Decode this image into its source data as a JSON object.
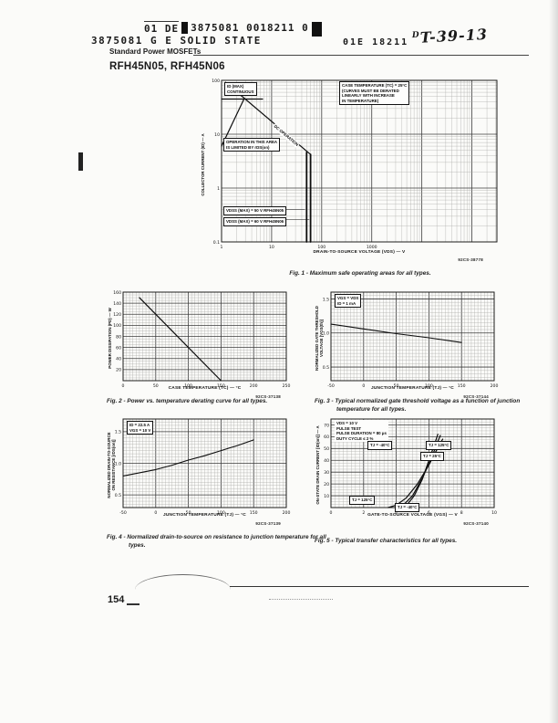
{
  "header": {
    "stamp_left": "01  DE",
    "stamp_right": "3875081 0018211 0",
    "vendor": "3875081 G E SOLID STATE",
    "doc_code": "01E 18211",
    "handwritten_prefix": "D",
    "handwritten": "T-39-13",
    "subtitle": "Standard Power MOSFETs",
    "part_numbers": "RFH45N05, RFH45N06"
  },
  "figures": [
    {
      "caption": "Fig. 1 - Maximum safe operating areas for all types."
    },
    {
      "caption": "Fig. 2 - Power vs. temperature derating curve for all types."
    },
    {
      "caption": "Fig. 3 - Typical normalized gate threshold voltage as a function of junction temperature for all types."
    },
    {
      "caption": "Fig. 4 - Normalized drain-to-source on resistance to junction temperature for all types."
    },
    {
      "caption": "Fig. 5 - Typical transfer characteristics for all types."
    }
  ],
  "footer": {
    "page_number": "154"
  },
  "chart_data": [
    {
      "id": "fig1-soa",
      "type": "line",
      "title": "Maximum safe operating areas",
      "xlabel": "DRAIN-TO-SOURCE VOLTAGE (VDS) — V",
      "ylabel": "COLLECTOR CURRENT (ID) — A",
      "code": "92CS-38778",
      "x": {
        "scale": "log",
        "min": 1,
        "max": 316228,
        "ticks": [
          [
            1,
            "1"
          ],
          [
            10,
            "10"
          ],
          [
            100,
            "100"
          ],
          [
            1000,
            "1000"
          ]
        ]
      },
      "y": {
        "scale": "log",
        "min": 0.1,
        "max": 100,
        "ticks": [
          [
            0.1,
            "0.1"
          ],
          [
            1,
            "1"
          ],
          [
            10,
            "10"
          ],
          [
            100,
            "100"
          ]
        ]
      },
      "annotations": {
        "id_max": "ID (MAX)\nCONTINUOUS",
        "case_temp": "CASE TEMPERATURE (TC) = 25°C\n(CURVES MUST BE DERATED\nLINEARLY WITH  INCREASE\nIN TEMPERATURE)",
        "dc_operation": "DC OPERATION",
        "rdson_area": "OPERATION IN THIS AREA\nIS LIMITED BY rDS(on)",
        "vdss_50": "VDSS (MAX) = 50 V    RFH45N05",
        "vdss_60": "VDSS (MAX) = 60 V    RFH45N06"
      },
      "series": [
        {
          "name": "rdson-limit",
          "lw": 1.2,
          "points": [
            [
              1,
              6
            ],
            [
              2.8,
              45
            ]
          ]
        },
        {
          "name": "id-max-continuous",
          "lw": 1.2,
          "points": [
            [
              1,
              45
            ],
            [
              6.6,
              45
            ]
          ]
        },
        {
          "name": "dc-operation",
          "lw": 1.2,
          "points": [
            [
              1.2,
              92
            ],
            [
              60,
              4.2
            ]
          ]
        },
        {
          "name": "vdss-50-v-limit",
          "lw": 1.8,
          "points": [
            [
              50,
              4.6
            ],
            [
              50,
              0.1
            ]
          ]
        },
        {
          "name": "vdss-60-v-limit",
          "lw": 1.8,
          "points": [
            [
              60,
              4.2
            ],
            [
              60,
              0.1
            ]
          ]
        },
        {
          "name": "pointer-to-50v-line",
          "lw": 0.6,
          "points": [
            [
              9,
              0.4
            ],
            [
              46,
              0.4
            ]
          ]
        },
        {
          "name": "pointer-to-60v-line",
          "lw": 0.6,
          "points": [
            [
              9,
              0.26
            ],
            [
              56,
              0.26
            ]
          ]
        }
      ]
    },
    {
      "id": "fig2-derating",
      "type": "line",
      "title": "Power vs. temperature derating curve",
      "xlabel": "CASE TEMPERATURE (TC) — °C",
      "ylabel": "POWER DISSIPATION (PD) — W",
      "code": "92CS-37138",
      "x": {
        "scale": "linear",
        "min": 0,
        "max": 250,
        "minor": 5,
        "major": 50,
        "ticks": [
          [
            0,
            "0"
          ],
          [
            50,
            "50"
          ],
          [
            100,
            "100"
          ],
          [
            150,
            "150"
          ],
          [
            200,
            "200"
          ],
          [
            250,
            "250"
          ]
        ]
      },
      "y": {
        "scale": "linear",
        "min": 0,
        "max": 160,
        "minor": 5,
        "major": 20,
        "ticks": [
          [
            20,
            "20"
          ],
          [
            40,
            "40"
          ],
          [
            60,
            "60"
          ],
          [
            80,
            "80"
          ],
          [
            100,
            "100"
          ],
          [
            120,
            "120"
          ],
          [
            140,
            "140"
          ],
          [
            160,
            "160"
          ]
        ]
      },
      "series": [
        {
          "name": "derating-line",
          "lw": 1.2,
          "points": [
            [
              25,
              150
            ],
            [
              150,
              0
            ]
          ]
        }
      ]
    },
    {
      "id": "fig3-gate-threshold",
      "type": "line",
      "title": "Typical normalized gate threshold voltage vs junction temperature",
      "xlabel": "JUNCTION TEMPERATURE (TJ) — °C",
      "ylabel": "NORMALIZED GATE THRESHOLD\nVOLTAGE [VGS(th)]",
      "code": "92CS-37144",
      "x": {
        "scale": "linear",
        "min": -50,
        "max": 200,
        "minor": 5,
        "major": 50,
        "ticks": [
          [
            -50,
            "-50"
          ],
          [
            0,
            "0"
          ],
          [
            50,
            "50"
          ],
          [
            100,
            "100"
          ],
          [
            150,
            "150"
          ],
          [
            200,
            "200"
          ]
        ]
      },
      "y": {
        "scale": "linear",
        "min": 0.3,
        "max": 1.6,
        "minor": 0.05,
        "major": 0.5,
        "ticks": [
          [
            0.5,
            "0.5"
          ],
          [
            1.0,
            "1.0"
          ],
          [
            1.5,
            "1.5"
          ]
        ]
      },
      "annotations": {
        "conditions": "VGS = VDS\nID = 1 mA"
      },
      "series": [
        {
          "name": "normalized-vgsth",
          "lw": 1.1,
          "points": [
            [
              -50,
              1.13
            ],
            [
              0,
              1.06
            ],
            [
              50,
              0.99
            ],
            [
              100,
              0.93
            ],
            [
              150,
              0.86
            ]
          ]
        }
      ]
    },
    {
      "id": "fig4-rdson",
      "type": "line",
      "title": "Normalized drain-to-source on resistance vs junction temperature",
      "xlabel": "JUNCTION TEMPERATURE (TJ) — °C",
      "ylabel": "NORMALIZED DRAIN-TO-SOURCE\nON RESISTANCE [rDS(on)]",
      "code": "92CS-37139",
      "x": {
        "scale": "linear",
        "min": -50,
        "max": 200,
        "minor": 5,
        "major": 50,
        "ticks": [
          [
            -50,
            "-50"
          ],
          [
            0,
            "0"
          ],
          [
            50,
            "50"
          ],
          [
            100,
            "100"
          ],
          [
            150,
            "150"
          ],
          [
            200,
            "200"
          ]
        ]
      },
      "y": {
        "scale": "linear",
        "min": 0.3,
        "max": 1.7,
        "minor": 0.05,
        "major": 0.5,
        "ticks": [
          [
            0.5,
            "0.5"
          ],
          [
            1.0,
            "1.0"
          ],
          [
            1.5,
            "1.5"
          ]
        ]
      },
      "annotations": {
        "conditions": "ID = 22.5 A\nVGS = 10 V"
      },
      "series": [
        {
          "name": "normalized-rdson",
          "lw": 1.1,
          "points": [
            [
              -50,
              0.8
            ],
            [
              -25,
              0.85
            ],
            [
              0,
              0.9
            ],
            [
              25,
              0.97
            ],
            [
              50,
              1.05
            ],
            [
              75,
              1.12
            ],
            [
              100,
              1.2
            ],
            [
              125,
              1.28
            ],
            [
              150,
              1.37
            ]
          ]
        }
      ]
    },
    {
      "id": "fig5-transfer",
      "type": "line",
      "title": "Typical transfer characteristics",
      "xlabel": "GATE-TO-SOURCE VOLTAGE (VGS) — V",
      "ylabel": "ON-STATE DRAIN CURRENT [ID(on)] — A",
      "code": "92CS-37140",
      "x": {
        "scale": "linear",
        "min": 0,
        "max": 10,
        "minor": 0.25,
        "major": 2,
        "ticks": [
          [
            0,
            "0"
          ],
          [
            2,
            "2"
          ],
          [
            4,
            "4"
          ],
          [
            6,
            "6"
          ],
          [
            8,
            "8"
          ],
          [
            10,
            "10"
          ]
        ]
      },
      "y": {
        "scale": "linear",
        "min": 0,
        "max": 75,
        "minor": 2.5,
        "major": 10,
        "ticks": [
          [
            10,
            "10"
          ],
          [
            20,
            "20"
          ],
          [
            30,
            "30"
          ],
          [
            40,
            "40"
          ],
          [
            50,
            "50"
          ],
          [
            60,
            "60"
          ],
          [
            70,
            "70"
          ]
        ]
      },
      "annotations": {
        "conditions": "VDS = 10 V\nPULSE TEST\nPULSE DURATION = 80 μs\nDUTY CYCLE ≤ 2 %",
        "tj_m40_top": "TJ = -40°C",
        "tj_125_top": "TJ = 125°C",
        "tj_25_mid": "TJ = 25°C",
        "tj_125_bottom": "TJ = 125°C",
        "tj_m40_bottom": "TJ = -40°C"
      },
      "series": [
        {
          "name": "tj-minus-40c",
          "lw": 1.2,
          "points": [
            [
              4.3,
              0
            ],
            [
              4.7,
              3
            ],
            [
              5.1,
              10
            ],
            [
              5.6,
              24
            ],
            [
              6.0,
              40
            ],
            [
              6.4,
              56
            ],
            [
              6.55,
              62
            ]
          ]
        },
        {
          "name": "tj-25c",
          "lw": 1.2,
          "points": [
            [
              4.0,
              0
            ],
            [
              4.5,
              3
            ],
            [
              5.0,
              10
            ],
            [
              5.6,
              25
            ],
            [
              6.1,
              40
            ],
            [
              6.55,
              56
            ],
            [
              6.7,
              61
            ]
          ]
        },
        {
          "name": "tj-125c",
          "lw": 1.2,
          "points": [
            [
              3.5,
              0
            ],
            [
              4.0,
              2
            ],
            [
              4.6,
              8
            ],
            [
              5.3,
              20
            ],
            [
              6.0,
              36
            ],
            [
              6.6,
              52
            ],
            [
              6.85,
              58
            ]
          ]
        }
      ]
    }
  ]
}
